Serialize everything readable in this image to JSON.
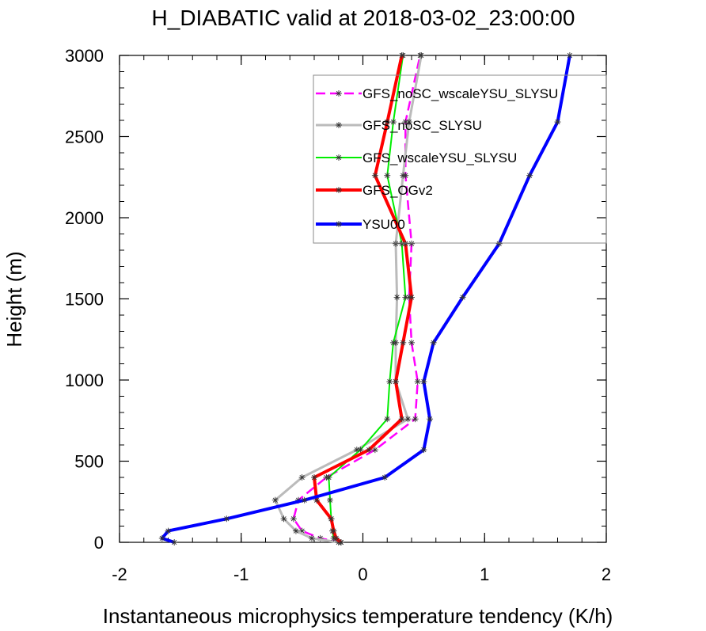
{
  "chart_data": {
    "type": "line",
    "title": "H_DIABATIC valid at 2018-03-02_23:00:00",
    "xlabel": "Instantaneous microphysics temperature tendency (K/h)",
    "ylabel": "Height (m)",
    "xlim": [
      -2,
      2
    ],
    "ylim": [
      0,
      3000
    ],
    "xticks": [
      -2,
      -1,
      0,
      1,
      2
    ],
    "yticks": [
      0,
      500,
      1000,
      1500,
      2000,
      2500,
      3000
    ],
    "xtick_labels": [
      "-2",
      "-1",
      "0",
      "1",
      "2"
    ],
    "ytick_labels": [
      "0",
      "500",
      "1000",
      "1500",
      "2000",
      "2500",
      "3000"
    ],
    "grid": false,
    "legend_position": "top-right",
    "series": [
      {
        "name": "GFS_noSC_wscaleYSU_SLYSU",
        "color": "#ff00ff",
        "dash": true,
        "points": [
          [
            -0.18,
            0
          ],
          [
            -0.35,
            25
          ],
          [
            -0.5,
            70
          ],
          [
            -0.57,
            145
          ],
          [
            -0.53,
            260
          ],
          [
            -0.3,
            400
          ],
          [
            0.1,
            570
          ],
          [
            0.43,
            760
          ],
          [
            0.45,
            990
          ],
          [
            0.4,
            1230
          ],
          [
            0.38,
            1510
          ],
          [
            0.4,
            1840
          ],
          [
            0.35,
            2260
          ],
          [
            0.35,
            2590
          ],
          [
            0.47,
            3000
          ]
        ]
      },
      {
        "name": "GFS_noSC_SLYSU",
        "color": "#bbbbbb",
        "dash": false,
        "points": [
          [
            -0.2,
            0
          ],
          [
            -0.42,
            25
          ],
          [
            -0.55,
            70
          ],
          [
            -0.65,
            145
          ],
          [
            -0.72,
            260
          ],
          [
            -0.5,
            400
          ],
          [
            -0.05,
            570
          ],
          [
            0.37,
            760
          ],
          [
            0.27,
            990
          ],
          [
            0.27,
            1230
          ],
          [
            0.28,
            1510
          ],
          [
            0.27,
            1840
          ],
          [
            0.33,
            2260
          ],
          [
            0.38,
            2590
          ],
          [
            0.48,
            3000
          ]
        ]
      },
      {
        "name": "GFS_wscaleYSU_SLYSU",
        "color": "#00ee00",
        "dash": false,
        "points": [
          [
            -0.18,
            0
          ],
          [
            -0.24,
            25
          ],
          [
            -0.25,
            70
          ],
          [
            -0.26,
            145
          ],
          [
            -0.27,
            260
          ],
          [
            -0.28,
            400
          ],
          [
            -0.02,
            570
          ],
          [
            0.2,
            760
          ],
          [
            0.22,
            990
          ],
          [
            0.25,
            1230
          ],
          [
            0.35,
            1510
          ],
          [
            0.32,
            1840
          ],
          [
            0.2,
            2260
          ],
          [
            0.25,
            2590
          ],
          [
            0.33,
            3000
          ]
        ]
      },
      {
        "name": "GFS_OGv2",
        "color": "#ff0000",
        "dash": false,
        "points": [
          [
            -0.18,
            0
          ],
          [
            -0.22,
            25
          ],
          [
            -0.24,
            70
          ],
          [
            -0.26,
            145
          ],
          [
            -0.38,
            260
          ],
          [
            -0.4,
            400
          ],
          [
            0.05,
            570
          ],
          [
            0.32,
            760
          ],
          [
            0.27,
            990
          ],
          [
            0.33,
            1230
          ],
          [
            0.4,
            1510
          ],
          [
            0.35,
            1840
          ],
          [
            0.1,
            2260
          ],
          [
            0.2,
            2590
          ],
          [
            0.32,
            3000
          ]
        ]
      },
      {
        "name": "YSU00",
        "color": "#0000ff",
        "dash": false,
        "points": [
          [
            -1.55,
            0
          ],
          [
            -1.65,
            25
          ],
          [
            -1.6,
            70
          ],
          [
            -1.12,
            145
          ],
          [
            -0.48,
            260
          ],
          [
            0.18,
            400
          ],
          [
            0.5,
            570
          ],
          [
            0.55,
            760
          ],
          [
            0.5,
            990
          ],
          [
            0.58,
            1230
          ],
          [
            0.82,
            1510
          ],
          [
            1.12,
            1840
          ],
          [
            1.37,
            2260
          ],
          [
            1.6,
            2590
          ],
          [
            1.7,
            3000
          ]
        ]
      }
    ]
  }
}
